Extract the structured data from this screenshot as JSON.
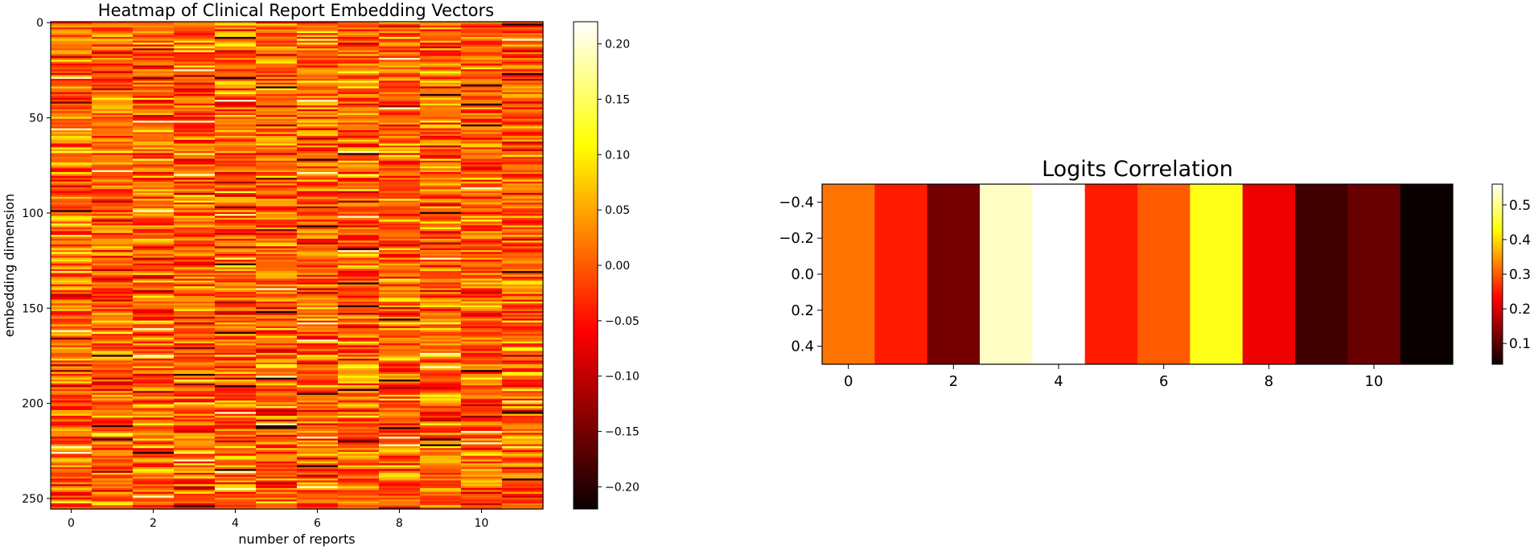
{
  "chart_data": [
    {
      "type": "heatmap",
      "title": "Heatmap of Clinical Report Embedding Vectors",
      "xlabel": "number of reports",
      "ylabel": "embedding dimension",
      "n_cols": 12,
      "n_rows": 256,
      "colormap": "hot",
      "value_range": [
        -0.22,
        0.22
      ],
      "x_ticks": [
        0,
        2,
        4,
        6,
        8,
        10
      ],
      "y_ticks": [
        0,
        50,
        100,
        150,
        200,
        250
      ],
      "colorbar_ticks": [
        0.2,
        0.15,
        0.1,
        0.05,
        0.0,
        -0.05,
        -0.1,
        -0.15,
        -0.2
      ],
      "colorbar_tick_labels": [
        "0.20",
        "0.15",
        "0.10",
        "0.05",
        "0.00",
        "−0.05",
        "−0.10",
        "−0.15",
        "−0.20"
      ],
      "values_note": "256x12 embedding values are too dense to read individually; rendered as pseudo-random values within value_range"
    },
    {
      "type": "heatmap",
      "title": "Logits Correlation",
      "colormap": "hot",
      "value_range": [
        0.04,
        0.56
      ],
      "x": [
        0,
        1,
        2,
        3,
        4,
        5,
        6,
        7,
        8,
        9,
        10,
        11
      ],
      "values": [
        0.32,
        0.25,
        0.12,
        0.53,
        0.56,
        0.25,
        0.3,
        0.44,
        0.21,
        0.08,
        0.11,
        0.04
      ],
      "x_ticks": [
        0,
        2,
        4,
        6,
        8,
        10
      ],
      "y_range": [
        -0.5,
        0.5
      ],
      "y_ticks": [
        -0.4,
        -0.2,
        0.0,
        0.2,
        0.4
      ],
      "y_tick_labels": [
        "−0.4",
        "−0.2",
        "0.0",
        "0.2",
        "0.4"
      ],
      "colorbar_ticks": [
        0.5,
        0.4,
        0.3,
        0.2,
        0.1
      ],
      "colorbar_tick_labels": [
        "0.5",
        "0.4",
        "0.3",
        "0.2",
        "0.1"
      ]
    }
  ]
}
